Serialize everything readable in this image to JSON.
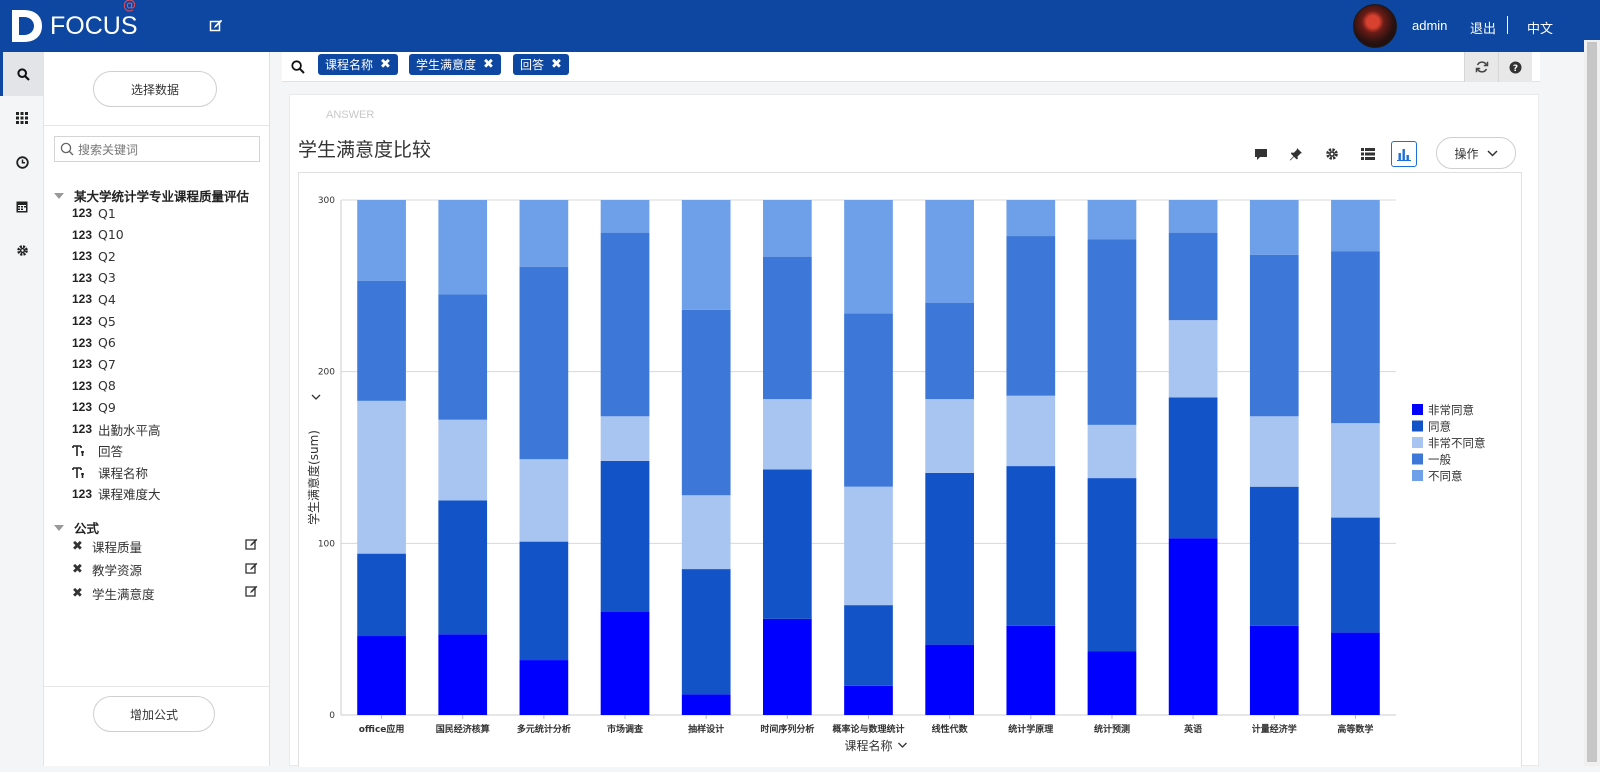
{
  "header": {
    "logo_text": "FOCUS",
    "logo_at": "@",
    "user": "admin",
    "logout": "退出",
    "language": "中文"
  },
  "sidebar": {
    "select_data": "选择数据",
    "search_placeholder": "搜索关键词",
    "dataset": "某大学统计学专业课程质量评估",
    "fields": [
      {
        "type": "123",
        "name": "Q1"
      },
      {
        "type": "123",
        "name": "Q10"
      },
      {
        "type": "123",
        "name": "Q2"
      },
      {
        "type": "123",
        "name": "Q3"
      },
      {
        "type": "123",
        "name": "Q4"
      },
      {
        "type": "123",
        "name": "Q5"
      },
      {
        "type": "123",
        "name": "Q6"
      },
      {
        "type": "123",
        "name": "Q7"
      },
      {
        "type": "123",
        "name": "Q8"
      },
      {
        "type": "123",
        "name": "Q9"
      },
      {
        "type": "123",
        "name": "出勤水平高"
      },
      {
        "type": "T",
        "name": "回答"
      },
      {
        "type": "T",
        "name": "课程名称"
      },
      {
        "type": "123",
        "name": "课程难度大"
      }
    ],
    "formula_head": "公式",
    "formulas": [
      "课程质量",
      "教学资源",
      "学生满意度"
    ],
    "add_formula": "增加公式"
  },
  "search": {
    "chips": [
      "课程名称",
      "学生满意度",
      "回答"
    ]
  },
  "card": {
    "answer_label": "ANSWER",
    "title": "学生满意度比较",
    "operate": "操作"
  },
  "colors": {
    "header": "#0d47a1",
    "非常同意": "#0000ff",
    "同意": "#1253c8",
    "非常不同意": "#a8c4f0",
    "一般": "#3d78d8",
    "不同意": "#6e9fe9"
  },
  "chart_data": {
    "type": "bar",
    "stacked": true,
    "title": "",
    "xlabel": "课程名称",
    "ylabel": "学生满意度(sum)",
    "ylim": [
      0,
      300
    ],
    "yticks": [
      0,
      100,
      200,
      300
    ],
    "grid": true,
    "legend_position": "right",
    "categories": [
      "office应用",
      "国民经济核算",
      "多元统计分析",
      "市场调查",
      "抽样设计",
      "时间序列分析",
      "概率论与数理统计",
      "线性代数",
      "统计学原理",
      "统计预测",
      "英语",
      "计量经济学",
      "高等数学"
    ],
    "series": [
      {
        "name": "非常同意",
        "values": [
          46,
          47,
          32,
          60,
          12,
          56,
          17,
          41,
          52,
          37,
          103,
          52,
          48
        ]
      },
      {
        "name": "同意",
        "values": [
          48,
          78,
          69,
          88,
          73,
          87,
          47,
          100,
          93,
          101,
          82,
          81,
          67
        ]
      },
      {
        "name": "非常不同意",
        "values": [
          89,
          47,
          48,
          26,
          43,
          41,
          69,
          43,
          41,
          31,
          45,
          41,
          55
        ]
      },
      {
        "name": "一般",
        "values": [
          70,
          73,
          112,
          107,
          108,
          83,
          101,
          56,
          93,
          108,
          51,
          94,
          100
        ]
      },
      {
        "name": "不同意",
        "values": [
          47,
          55,
          39,
          19,
          64,
          33,
          66,
          60,
          21,
          23,
          19,
          32,
          30
        ]
      }
    ],
    "legend_order": [
      "非常同意",
      "同意",
      "非常不同意",
      "一般",
      "不同意"
    ]
  }
}
